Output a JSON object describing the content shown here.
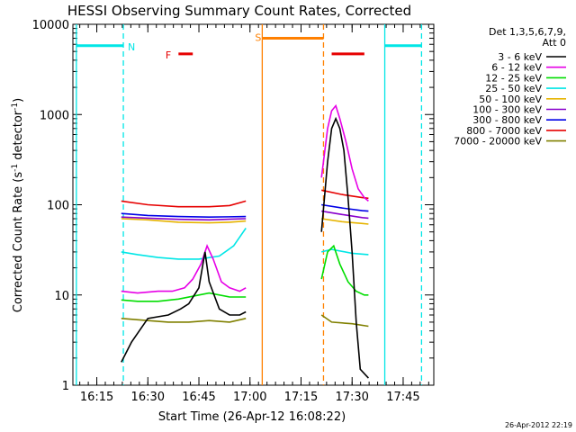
{
  "chart_data": {
    "type": "line",
    "title": "HESSI Observing Summary Count Rates, Corrected",
    "xlabel": "Start Time (26-Apr-12 16:08:22)",
    "ylabel_main": "Corrected Count Rate (s",
    "ylabel_sup1": "-1",
    "ylabel_mid": " detector",
    "ylabel_sup2": "-1",
    "ylabel_end": ")",
    "yscale": "log",
    "ylim": [
      1,
      10000
    ],
    "xlim": [
      16.133,
      17.9
    ],
    "x_unit": "decimal hours",
    "x_ticks": [
      {
        "v": 16.25,
        "label": "16:15"
      },
      {
        "v": 16.5,
        "label": "16:30"
      },
      {
        "v": 16.75,
        "label": "16:45"
      },
      {
        "v": 17.0,
        "label": "17:00"
      },
      {
        "v": 17.25,
        "label": "17:15"
      },
      {
        "v": 17.5,
        "label": "17:30"
      },
      {
        "v": 17.75,
        "label": "17:45"
      }
    ],
    "y_ticks": [
      {
        "v": 1,
        "label": "1"
      },
      {
        "v": 10,
        "label": "10"
      },
      {
        "v": 100,
        "label": "100"
      },
      {
        "v": 1000,
        "label": "1000"
      },
      {
        "v": 10000,
        "label": "10000"
      }
    ],
    "legend": {
      "placement": "right",
      "header1": "Det 1,3,5,6,7,9,",
      "header2": "Att 0",
      "entries": [
        {
          "label": "3 - 6 keV",
          "color": "#000000"
        },
        {
          "label": "6 - 12 keV",
          "color": "#e600e6"
        },
        {
          "label": "12 - 25 keV",
          "color": "#00dd00"
        },
        {
          "label": "25 - 50 keV",
          "color": "#00e6e6"
        },
        {
          "label": "50 - 100 keV",
          "color": "#e6b400"
        },
        {
          "label": "100 - 300 keV",
          "color": "#8800cc"
        },
        {
          "label": "300 - 800 keV",
          "color": "#0000e6"
        },
        {
          "label": "800 - 7000 keV",
          "color": "#e60000"
        },
        {
          "label": "7000 - 20000 keV",
          "color": "#808000"
        }
      ]
    },
    "series": [
      {
        "name": "3 - 6 keV",
        "color": "#000000",
        "segments": [
          [
            [
              16.37,
              1.8
            ],
            [
              16.42,
              3
            ],
            [
              16.5,
              5.5
            ],
            [
              16.6,
              6
            ],
            [
              16.66,
              7
            ],
            [
              16.7,
              8
            ],
            [
              16.75,
              12
            ],
            [
              16.78,
              30
            ],
            [
              16.8,
              14
            ],
            [
              16.85,
              7
            ],
            [
              16.9,
              6
            ],
            [
              16.95,
              6
            ],
            [
              16.98,
              6.5
            ]
          ],
          [
            [
              17.35,
              50
            ],
            [
              17.38,
              300
            ],
            [
              17.4,
              700
            ],
            [
              17.42,
              900
            ],
            [
              17.44,
              700
            ],
            [
              17.46,
              400
            ],
            [
              17.48,
              120
            ],
            [
              17.5,
              30
            ],
            [
              17.52,
              5
            ],
            [
              17.54,
              1.5
            ],
            [
              17.58,
              1.2
            ]
          ]
        ]
      },
      {
        "name": "6 - 12 keV",
        "color": "#e600e6",
        "segments": [
          [
            [
              16.37,
              11
            ],
            [
              16.45,
              10.5
            ],
            [
              16.55,
              11
            ],
            [
              16.62,
              11
            ],
            [
              16.68,
              12
            ],
            [
              16.72,
              15
            ],
            [
              16.76,
              22
            ],
            [
              16.79,
              35
            ],
            [
              16.82,
              25
            ],
            [
              16.86,
              14
            ],
            [
              16.9,
              12
            ],
            [
              16.95,
              11
            ],
            [
              16.98,
              12
            ]
          ],
          [
            [
              17.35,
              200
            ],
            [
              17.38,
              700
            ],
            [
              17.4,
              1100
            ],
            [
              17.42,
              1250
            ],
            [
              17.44,
              900
            ],
            [
              17.47,
              500
            ],
            [
              17.5,
              250
            ],
            [
              17.53,
              150
            ],
            [
              17.56,
              120
            ],
            [
              17.58,
              110
            ]
          ]
        ]
      },
      {
        "name": "12 - 25 keV",
        "color": "#00dd00",
        "segments": [
          [
            [
              16.37,
              8.8
            ],
            [
              16.45,
              8.5
            ],
            [
              16.55,
              8.5
            ],
            [
              16.65,
              9
            ],
            [
              16.75,
              10
            ],
            [
              16.8,
              10.5
            ],
            [
              16.9,
              9.5
            ],
            [
              16.98,
              9.5
            ]
          ],
          [
            [
              17.35,
              15
            ],
            [
              17.38,
              30
            ],
            [
              17.41,
              35
            ],
            [
              17.44,
              22
            ],
            [
              17.48,
              14
            ],
            [
              17.52,
              11
            ],
            [
              17.56,
              10
            ],
            [
              17.58,
              10
            ]
          ]
        ]
      },
      {
        "name": "25 - 50 keV",
        "color": "#00e6e6",
        "segments": [
          [
            [
              16.37,
              30
            ],
            [
              16.45,
              28
            ],
            [
              16.55,
              26
            ],
            [
              16.65,
              25
            ],
            [
              16.75,
              25
            ],
            [
              16.85,
              27
            ],
            [
              16.92,
              35
            ],
            [
              16.98,
              55
            ]
          ],
          [
            [
              17.35,
              30
            ],
            [
              17.4,
              32
            ],
            [
              17.5,
              29
            ],
            [
              17.58,
              28
            ]
          ]
        ]
      },
      {
        "name": "50 - 100 keV",
        "color": "#e6b400",
        "segments": [
          [
            [
              16.37,
              70
            ],
            [
              16.5,
              68
            ],
            [
              16.65,
              64
            ],
            [
              16.8,
              63
            ],
            [
              16.9,
              64
            ],
            [
              16.98,
              66
            ]
          ],
          [
            [
              17.35,
              70
            ],
            [
              17.45,
              65
            ],
            [
              17.55,
              62
            ],
            [
              17.58,
              61
            ]
          ]
        ]
      },
      {
        "name": "100 - 300 keV",
        "color": "#8800cc",
        "segments": [
          [
            [
              16.37,
              73
            ],
            [
              16.5,
              71
            ],
            [
              16.65,
              69
            ],
            [
              16.8,
              68
            ],
            [
              16.98,
              70
            ]
          ],
          [
            [
              17.35,
              85
            ],
            [
              17.45,
              78
            ],
            [
              17.55,
              72
            ],
            [
              17.58,
              71
            ]
          ]
        ]
      },
      {
        "name": "300 - 800 keV",
        "color": "#0000e6",
        "segments": [
          [
            [
              16.37,
              80
            ],
            [
              16.5,
              76
            ],
            [
              16.65,
              74
            ],
            [
              16.8,
              73
            ],
            [
              16.98,
              74
            ]
          ],
          [
            [
              17.35,
              100
            ],
            [
              17.45,
              92
            ],
            [
              17.55,
              86
            ],
            [
              17.58,
              85
            ]
          ]
        ]
      },
      {
        "name": "800 - 7000 keV",
        "color": "#e60000",
        "segments": [
          [
            [
              16.37,
              110
            ],
            [
              16.5,
              100
            ],
            [
              16.65,
              95
            ],
            [
              16.8,
              95
            ],
            [
              16.9,
              98
            ],
            [
              16.98,
              110
            ]
          ],
          [
            [
              17.35,
              145
            ],
            [
              17.45,
              130
            ],
            [
              17.55,
              120
            ],
            [
              17.58,
              118
            ]
          ]
        ]
      },
      {
        "name": "7000 - 20000 keV",
        "color": "#808000",
        "segments": [
          [
            [
              16.37,
              5.5
            ],
            [
              16.5,
              5.2
            ],
            [
              16.6,
              5
            ],
            [
              16.7,
              5
            ],
            [
              16.8,
              5.2
            ],
            [
              16.9,
              5
            ],
            [
              16.98,
              5.5
            ]
          ],
          [
            [
              17.35,
              6
            ],
            [
              17.4,
              5
            ],
            [
              17.5,
              4.8
            ],
            [
              17.58,
              4.5
            ]
          ]
        ]
      }
    ],
    "annotations": [
      {
        "label": "N",
        "x": 16.42,
        "y": 5600,
        "color": "#00e6e6"
      },
      {
        "label": "F",
        "x": 16.6,
        "y": 4600,
        "color": "#e60000"
      },
      {
        "label": "S",
        "x": 17.04,
        "y": 7200,
        "color": "#ff8000"
      }
    ],
    "bars": [
      {
        "color": "#00e6e6",
        "x1": 16.15,
        "x2": 16.38,
        "y": 5800
      },
      {
        "color": "#00e6e6",
        "x1": 17.66,
        "x2": 17.84,
        "y": 5800
      },
      {
        "color": "#e60000",
        "x1": 16.65,
        "x2": 16.72,
        "y": 4700
      },
      {
        "color": "#e60000",
        "x1": 17.4,
        "x2": 17.56,
        "y": 4700
      },
      {
        "color": "#ff8000",
        "x1": 17.06,
        "x2": 17.36,
        "y": 7000
      }
    ],
    "vlines": [
      {
        "x": 16.15,
        "color": "#00e6e6",
        "style": "solid"
      },
      {
        "x": 16.38,
        "color": "#00e6e6",
        "style": "dashed"
      },
      {
        "x": 17.06,
        "color": "#ff8000",
        "style": "solid"
      },
      {
        "x": 17.36,
        "color": "#ff8000",
        "style": "dashed"
      },
      {
        "x": 17.66,
        "color": "#00e6e6",
        "style": "solid"
      },
      {
        "x": 17.84,
        "color": "#00e6e6",
        "style": "dashed"
      }
    ],
    "timestamp": "26-Apr-2012 22:19"
  }
}
